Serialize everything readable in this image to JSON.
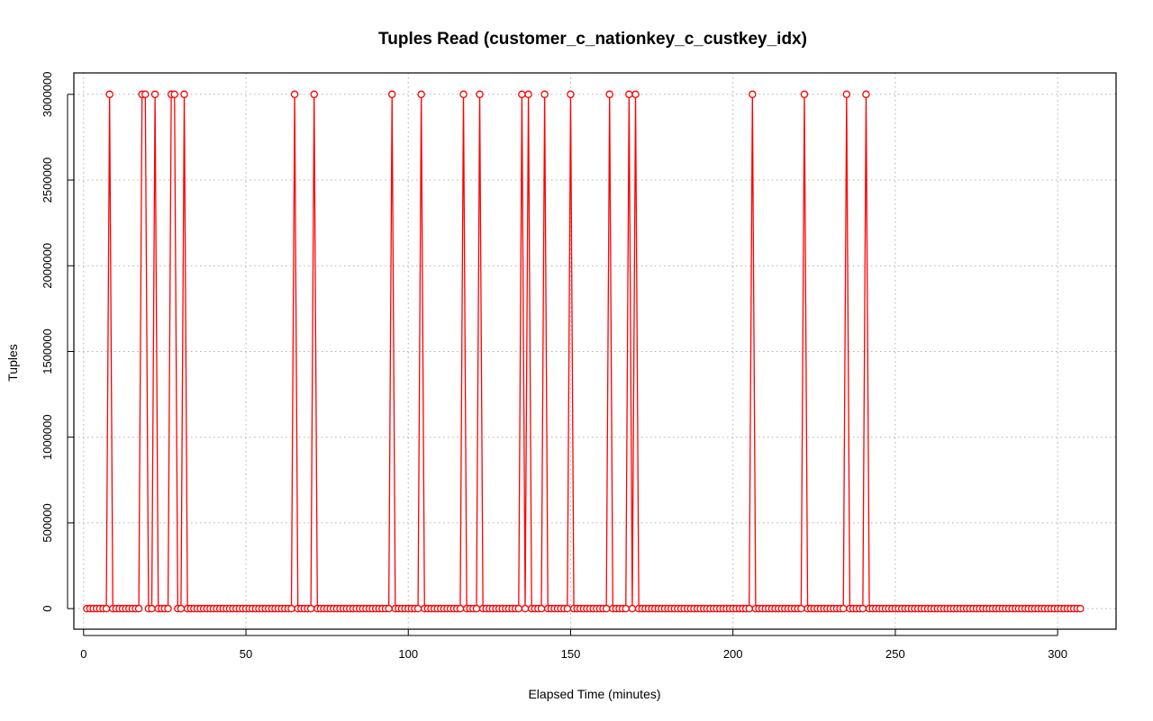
{
  "chart_data": {
    "type": "line",
    "title": "Tuples Read (customer_c_nationkey_c_custkey_idx)",
    "xlabel": "Elapsed Time (minutes)",
    "ylabel": "Tuples",
    "xlim": [
      -3,
      318
    ],
    "ylim": [
      -120000,
      3125000
    ],
    "x_ticks": [
      0,
      50,
      100,
      150,
      200,
      250,
      300
    ],
    "x_tick_labels": [
      "0",
      "50",
      "100",
      "150",
      "200",
      "250",
      "300"
    ],
    "y_ticks": [
      0,
      500000,
      1000000,
      1500000,
      2000000,
      2500000,
      3000000
    ],
    "y_tick_labels": [
      "0",
      "500000",
      "1000000",
      "1500000",
      "2000000",
      "2500000",
      "3000000"
    ],
    "grid": true,
    "series": [
      {
        "color": "#ff0000",
        "x_start": 1,
        "x_end": 307,
        "baseline": 0,
        "peak_value": 3000000,
        "peak_x": [
          8,
          18,
          19,
          22,
          27,
          28,
          31,
          65,
          71,
          95,
          104,
          117,
          122,
          135,
          137,
          142,
          150,
          162,
          168,
          170,
          206,
          222,
          235,
          241
        ]
      }
    ]
  },
  "colors": {
    "series": "#ff0000",
    "axis": "#000000",
    "grid": "#b0b0b0"
  }
}
